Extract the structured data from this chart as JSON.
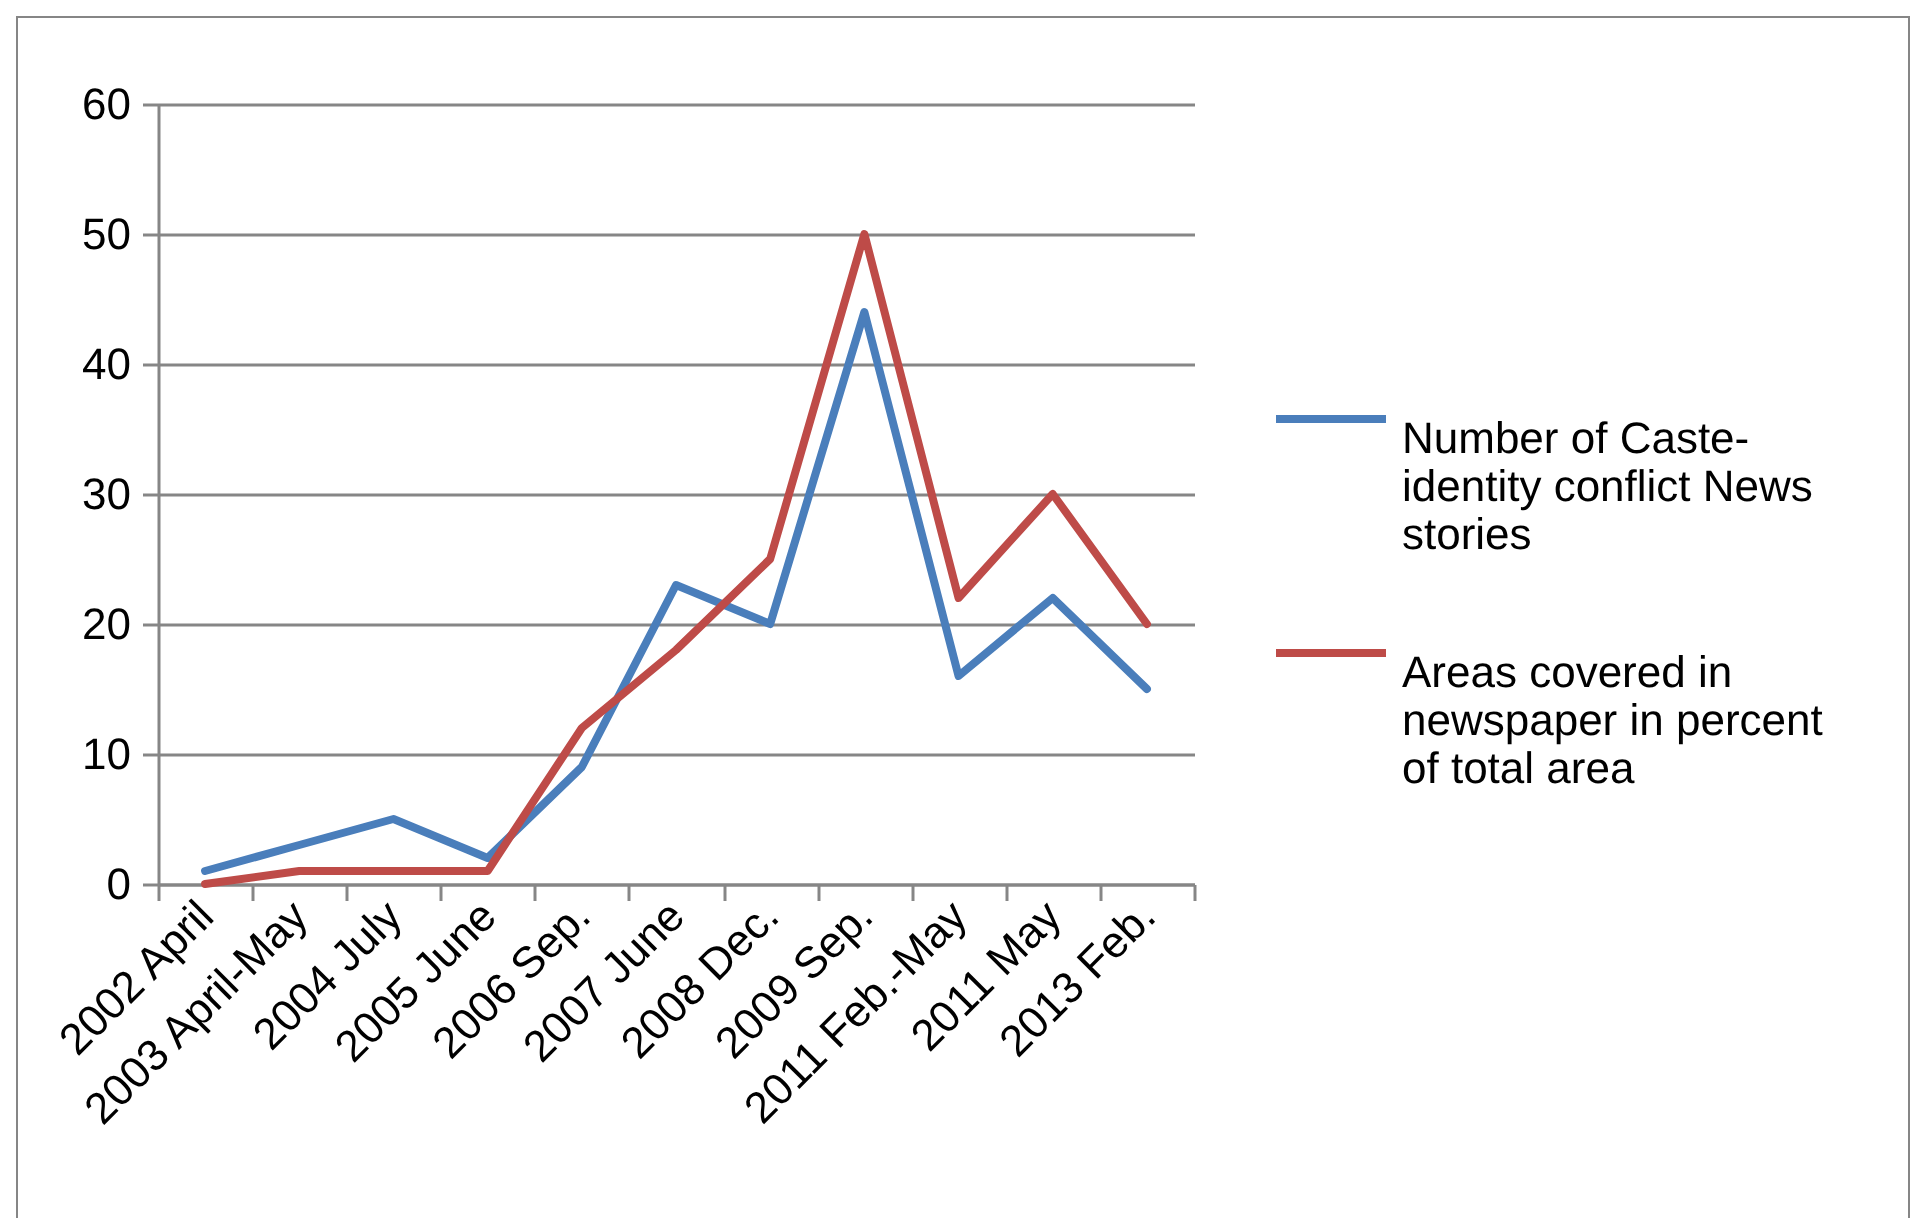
{
  "chart_data": {
    "type": "line",
    "categories": [
      "2002 April",
      "2003 April-May",
      "2004 July",
      "2005 June",
      "2006 Sep.",
      "2007 June",
      "2008 Dec.",
      "2009 Sep.",
      "2011 Feb.-May",
      "2011 May",
      "2013 Feb."
    ],
    "series": [
      {
        "name": "Number of Caste-identity conflict News stories",
        "color": "#4a7ebb",
        "values": [
          1,
          3,
          5,
          2,
          9,
          23,
          20,
          44,
          16,
          22,
          15
        ]
      },
      {
        "name": "Areas covered in newspaper in percent of total area",
        "color": "#be4b48",
        "values": [
          0,
          1,
          1,
          1,
          12,
          18,
          25,
          50,
          22,
          30,
          20
        ]
      }
    ],
    "ylim": [
      0,
      60
    ],
    "yticks": [
      0,
      10,
      20,
      30,
      40,
      50,
      60
    ],
    "grid": "y",
    "legend": "right"
  }
}
